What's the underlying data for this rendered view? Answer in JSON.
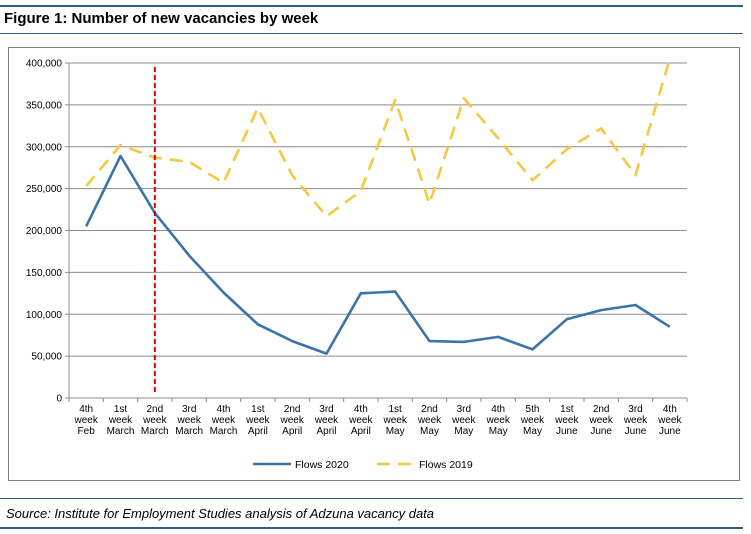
{
  "figure": {
    "title": "Figure 1: Number of new vacancies by week",
    "source": "Source: Institute for Employment Studies analysis of Adzuna vacancy data"
  },
  "chart_data": {
    "type": "line",
    "title": "",
    "xlabel": "",
    "ylabel": "",
    "ylim": [
      0,
      400000
    ],
    "yticks": [
      0,
      50000,
      100000,
      150000,
      200000,
      250000,
      300000,
      350000,
      400000
    ],
    "ytick_labels": [
      "0",
      "50,000",
      "100,000",
      "150,000",
      "200,000",
      "250,000",
      "300,000",
      "350,000",
      "400,000"
    ],
    "grid": "horizontal",
    "legend_position": "bottom",
    "categories": [
      [
        "4th",
        "week",
        "Feb"
      ],
      [
        "1st",
        "week",
        "March"
      ],
      [
        "2nd",
        "week",
        "March"
      ],
      [
        "3rd",
        "week",
        "March"
      ],
      [
        "4th",
        "week",
        "March"
      ],
      [
        "1st",
        "week",
        "April"
      ],
      [
        "2nd",
        "week",
        "April"
      ],
      [
        "3rd",
        "week",
        "April"
      ],
      [
        "4th",
        "week",
        "April"
      ],
      [
        "1st",
        "week",
        "May"
      ],
      [
        "2nd",
        "week",
        "May"
      ],
      [
        "3rd",
        "week",
        "May"
      ],
      [
        "4th",
        "week",
        "May"
      ],
      [
        "5th",
        "week",
        "May"
      ],
      [
        "1st",
        "week",
        "June"
      ],
      [
        "2nd",
        "week",
        "June"
      ],
      [
        "3rd",
        "week",
        "June"
      ],
      [
        "4th",
        "week",
        "June"
      ]
    ],
    "series": [
      {
        "name": "Flows 2020",
        "color": "#3c74a8",
        "style": "solid",
        "values": [
          205000,
          289000,
          221000,
          170000,
          126000,
          88000,
          68000,
          53000,
          125000,
          127000,
          68000,
          67000,
          73000,
          58000,
          94000,
          105000,
          111000,
          85000
        ]
      },
      {
        "name": "Flows 2019",
        "color": "#f5c842",
        "style": "dashed",
        "values": [
          253000,
          302000,
          287000,
          282000,
          257000,
          346000,
          266000,
          217000,
          247000,
          356000,
          232000,
          358000,
          310000,
          260000,
          297000,
          322000,
          266000,
          405000
        ]
      }
    ],
    "annotations": [
      {
        "type": "vertical-line",
        "x_category_index": 2,
        "color": "#e00000",
        "style": "dashed"
      }
    ]
  }
}
